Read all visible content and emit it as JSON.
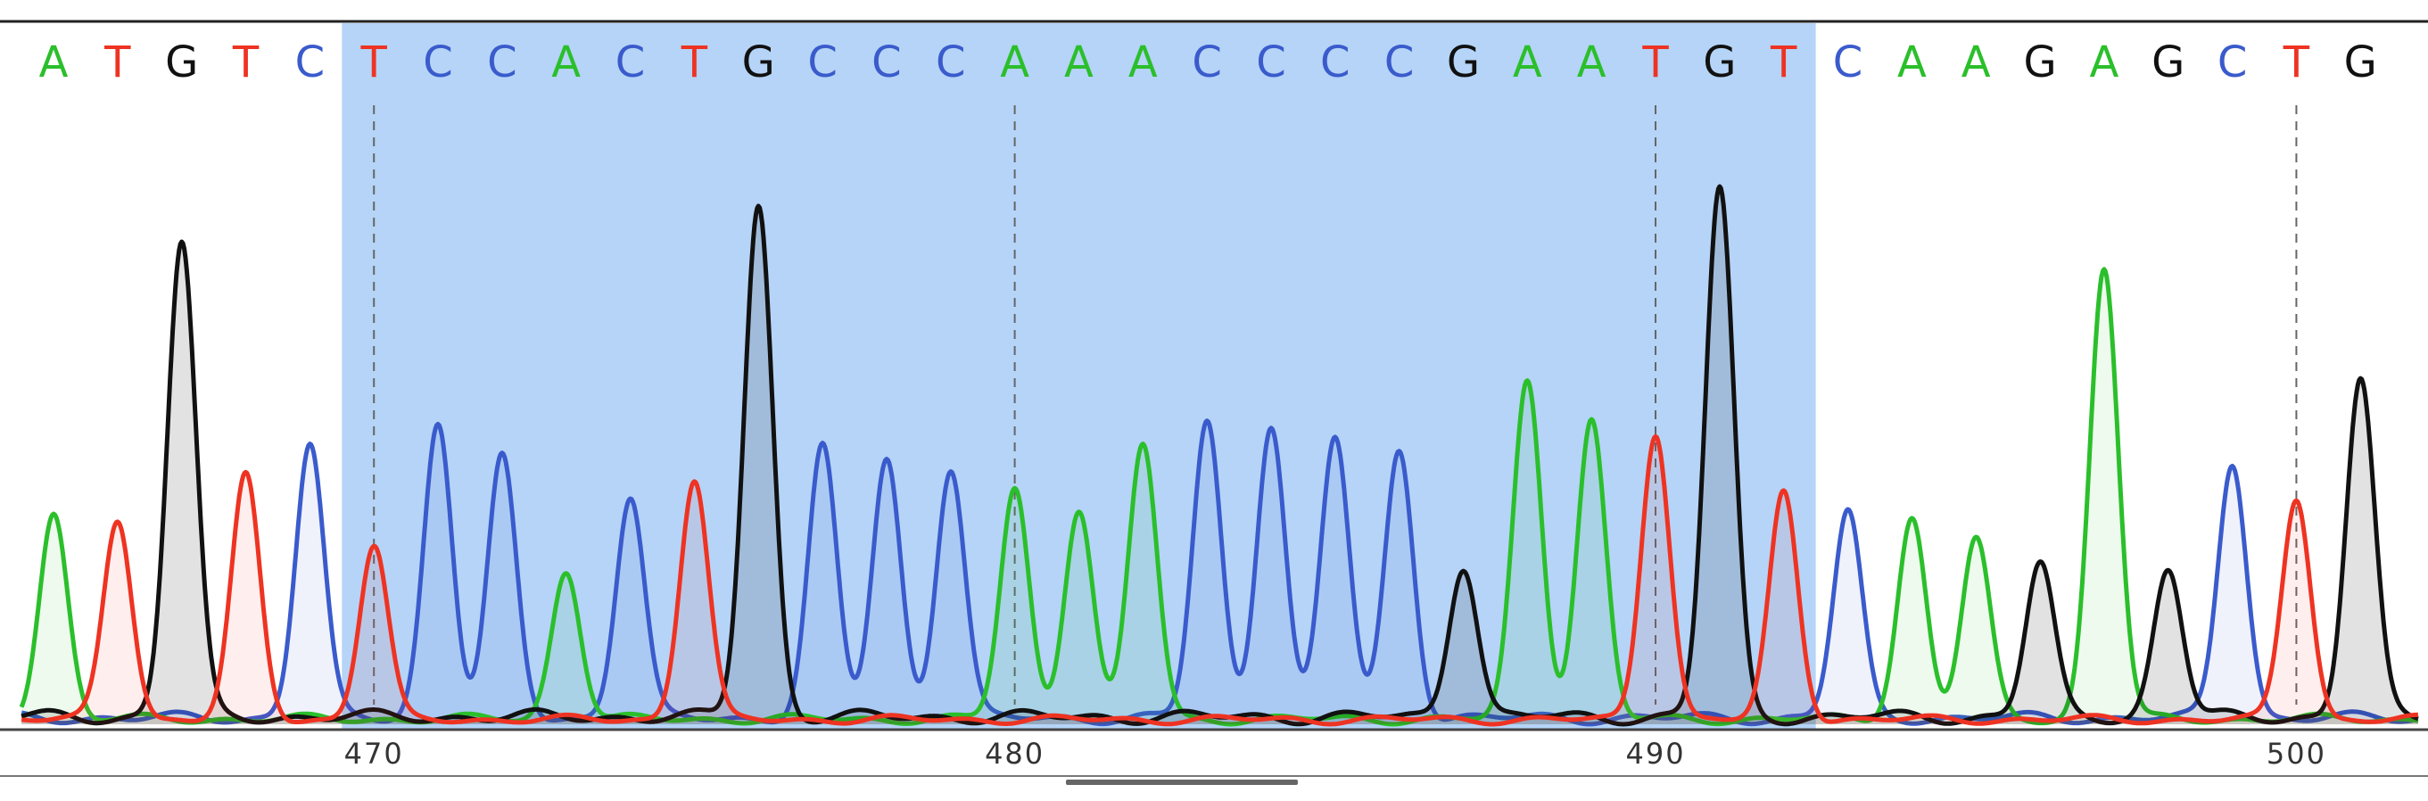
{
  "chart_data": {
    "type": "line",
    "title": "",
    "xlabel": "",
    "ylabel": "",
    "position_range": [
      465,
      501.4
    ],
    "ylim": [
      0,
      1000
    ],
    "selection": {
      "start": 469.5,
      "end": 492.5
    },
    "base_colors": {
      "A": "#2bbf2b",
      "C": "#3a5bcc",
      "G": "#111111",
      "T": "#ee3322"
    },
    "bases": [
      {
        "pos": 465,
        "base": "A"
      },
      {
        "pos": 466,
        "base": "T"
      },
      {
        "pos": 467,
        "base": "G"
      },
      {
        "pos": 468,
        "base": "T"
      },
      {
        "pos": 469,
        "base": "C"
      },
      {
        "pos": 470,
        "base": "T"
      },
      {
        "pos": 471,
        "base": "C"
      },
      {
        "pos": 472,
        "base": "C"
      },
      {
        "pos": 473,
        "base": "A"
      },
      {
        "pos": 474,
        "base": "C"
      },
      {
        "pos": 475,
        "base": "T"
      },
      {
        "pos": 476,
        "base": "G"
      },
      {
        "pos": 477,
        "base": "C"
      },
      {
        "pos": 478,
        "base": "C"
      },
      {
        "pos": 479,
        "base": "C"
      },
      {
        "pos": 480,
        "base": "A"
      },
      {
        "pos": 481,
        "base": "A"
      },
      {
        "pos": 482,
        "base": "A"
      },
      {
        "pos": 483,
        "base": "C"
      },
      {
        "pos": 484,
        "base": "C"
      },
      {
        "pos": 485,
        "base": "C"
      },
      {
        "pos": 486,
        "base": "C"
      },
      {
        "pos": 487,
        "base": "G"
      },
      {
        "pos": 488,
        "base": "A"
      },
      {
        "pos": 489,
        "base": "A"
      },
      {
        "pos": 490,
        "base": "T"
      },
      {
        "pos": 491,
        "base": "G"
      },
      {
        "pos": 492,
        "base": "T"
      },
      {
        "pos": 493,
        "base": "C"
      },
      {
        "pos": 494,
        "base": "A"
      },
      {
        "pos": 495,
        "base": "A"
      },
      {
        "pos": 496,
        "base": "G"
      },
      {
        "pos": 497,
        "base": "A"
      },
      {
        "pos": 498,
        "base": "G"
      },
      {
        "pos": 499,
        "base": "C"
      },
      {
        "pos": 500,
        "base": "T"
      },
      {
        "pos": 501,
        "base": "G"
      }
    ],
    "peak_heights": [
      390,
      380,
      900,
      460,
      520,
      330,
      560,
      490,
      280,
      420,
      455,
      970,
      510,
      490,
      475,
      435,
      400,
      520,
      560,
      560,
      530,
      505,
      290,
      640,
      565,
      545,
      1000,
      430,
      390,
      380,
      340,
      290,
      855,
      280,
      485,
      420,
      640
    ],
    "position_ticks": [
      470,
      480,
      490,
      500
    ]
  }
}
